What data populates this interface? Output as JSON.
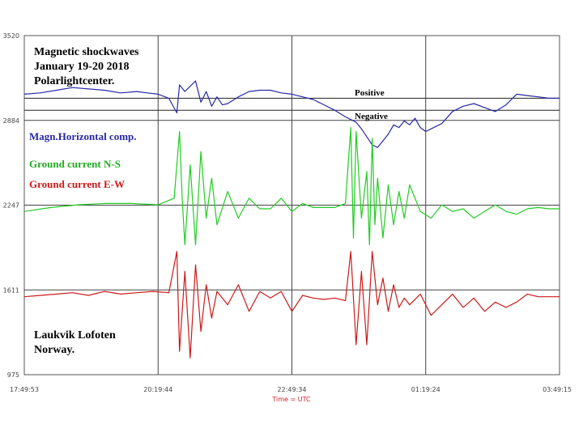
{
  "chart_data": {
    "type": "line",
    "xlabel": "Time = UTC",
    "ylabel": "",
    "y_ticks": [
      "3520",
      "2884",
      "2247",
      "1611",
      "975"
    ],
    "ylim": [
      975,
      3520
    ],
    "x_ticks": [
      "17:49:53",
      "20:19:44",
      "22:49:34",
      "01:19:24",
      "03:49:15"
    ],
    "grid": true,
    "reference_lines": [
      {
        "label": "Positive",
        "y": 3050
      },
      {
        "label": "Negative",
        "y": 2960
      }
    ],
    "series": [
      {
        "name": "Magn.Horizontal comp.",
        "color": "#2828a8",
        "x": [
          0,
          0.03,
          0.06,
          0.09,
          0.12,
          0.15,
          0.18,
          0.21,
          0.23,
          0.25,
          0.27,
          0.285,
          0.29,
          0.3,
          0.32,
          0.33,
          0.34,
          0.35,
          0.36,
          0.37,
          0.38,
          0.4,
          0.42,
          0.44,
          0.46,
          0.48,
          0.5,
          0.52,
          0.54,
          0.56,
          0.58,
          0.6,
          0.61,
          0.62,
          0.63,
          0.64,
          0.65,
          0.66,
          0.67,
          0.68,
          0.69,
          0.7,
          0.71,
          0.72,
          0.73,
          0.74,
          0.75,
          0.76,
          0.78,
          0.8,
          0.82,
          0.84,
          0.86,
          0.88,
          0.9,
          0.92,
          0.94,
          0.96,
          0.98,
          1.0
        ],
        "values": [
          3080,
          3090,
          3110,
          3130,
          3120,
          3110,
          3090,
          3100,
          3090,
          3080,
          3050,
          2940,
          3150,
          3100,
          3180,
          3020,
          3100,
          2990,
          3060,
          3000,
          3010,
          3060,
          3100,
          3110,
          3110,
          3090,
          3080,
          3060,
          3040,
          3000,
          2960,
          2910,
          2890,
          2870,
          2820,
          2760,
          2700,
          2680,
          2730,
          2780,
          2850,
          2830,
          2880,
          2850,
          2900,
          2830,
          2800,
          2820,
          2860,
          2950,
          2990,
          3010,
          2980,
          2950,
          3000,
          3080,
          3070,
          3060,
          3050,
          3050
        ]
      },
      {
        "name": "Ground current N-S",
        "color": "#22cc22",
        "x": [
          0,
          0.05,
          0.1,
          0.15,
          0.2,
          0.25,
          0.28,
          0.29,
          0.295,
          0.3,
          0.31,
          0.32,
          0.33,
          0.34,
          0.35,
          0.36,
          0.38,
          0.4,
          0.42,
          0.44,
          0.46,
          0.48,
          0.5,
          0.52,
          0.54,
          0.56,
          0.58,
          0.6,
          0.61,
          0.615,
          0.62,
          0.63,
          0.64,
          0.645,
          0.65,
          0.655,
          0.66,
          0.67,
          0.68,
          0.69,
          0.7,
          0.71,
          0.72,
          0.74,
          0.76,
          0.78,
          0.8,
          0.82,
          0.84,
          0.86,
          0.88,
          0.9,
          0.92,
          0.94,
          0.96,
          0.98,
          1.0
        ],
        "values": [
          2200,
          2230,
          2250,
          2260,
          2260,
          2250,
          2300,
          2800,
          2300,
          1950,
          2550,
          1950,
          2650,
          2150,
          2450,
          2100,
          2350,
          2150,
          2300,
          2220,
          2220,
          2300,
          2200,
          2260,
          2230,
          2230,
          2230,
          2260,
          2830,
          2000,
          2800,
          2150,
          2500,
          1950,
          2750,
          2100,
          2450,
          2000,
          2400,
          2100,
          2350,
          2150,
          2400,
          2200,
          2150,
          2250,
          2200,
          2220,
          2150,
          2200,
          2250,
          2200,
          2180,
          2220,
          2230,
          2220,
          2220
        ]
      },
      {
        "name": "Ground current E-W",
        "color": "#cc1a1a",
        "x": [
          0,
          0.03,
          0.06,
          0.09,
          0.12,
          0.15,
          0.18,
          0.21,
          0.24,
          0.27,
          0.285,
          0.29,
          0.3,
          0.31,
          0.32,
          0.33,
          0.34,
          0.35,
          0.36,
          0.38,
          0.4,
          0.42,
          0.44,
          0.46,
          0.48,
          0.5,
          0.52,
          0.54,
          0.56,
          0.58,
          0.6,
          0.61,
          0.62,
          0.63,
          0.64,
          0.65,
          0.66,
          0.67,
          0.68,
          0.69,
          0.7,
          0.71,
          0.72,
          0.74,
          0.76,
          0.78,
          0.8,
          0.82,
          0.84,
          0.86,
          0.88,
          0.9,
          0.92,
          0.94,
          0.96,
          0.98,
          1.0
        ],
        "values": [
          1560,
          1570,
          1580,
          1590,
          1570,
          1600,
          1580,
          1590,
          1600,
          1590,
          1900,
          1150,
          1750,
          1100,
          1800,
          1300,
          1650,
          1400,
          1600,
          1500,
          1650,
          1450,
          1600,
          1550,
          1600,
          1450,
          1570,
          1550,
          1540,
          1550,
          1530,
          1900,
          1200,
          1750,
          1200,
          1900,
          1500,
          1700,
          1450,
          1650,
          1480,
          1550,
          1500,
          1580,
          1420,
          1500,
          1580,
          1480,
          1550,
          1450,
          1520,
          1480,
          1520,
          1580,
          1560,
          1560,
          1560
        ]
      }
    ],
    "annotations": {
      "title_lines": [
        "Magnetic shockwaves",
        "January 19-20 2018",
        "Polarlightcenter."
      ],
      "location_lines": [
        "Laukvik  Lofoten",
        "Norway."
      ]
    }
  }
}
